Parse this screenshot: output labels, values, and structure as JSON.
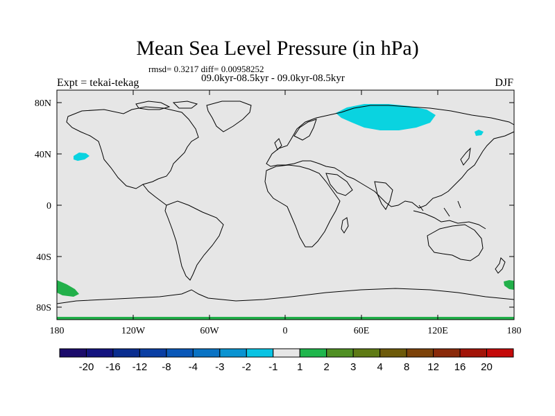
{
  "title": "Mean Sea Level Pressure (in hPa)",
  "stats_line": "rmsd= 0.3217 diff= 0.00958252",
  "period_line": "09.0kyr-08.5kyr - 09.0kyr-08.5kyr",
  "experiment_label": "Expt = tekai-tekag",
  "season_label": "DJF",
  "lat_ticks": [
    "80N",
    "40N",
    "0",
    "40S",
    "80S"
  ],
  "lon_ticks": [
    "180",
    "120W",
    "60W",
    "0",
    "60E",
    "120E",
    "180"
  ],
  "colorbar": {
    "colors": [
      "#1b0b6b",
      "#13137f",
      "#0a2d8f",
      "#0a3ea3",
      "#0a58b8",
      "#0a73c4",
      "#0a93d1",
      "#0ac3e3",
      "#e6e6e6",
      "#1fb64c",
      "#4f8f23",
      "#5e7a14",
      "#6d5a0a",
      "#7c420a",
      "#8a2a0a",
      "#a21408",
      "#c40a0a"
    ],
    "labels": [
      "-20",
      "-16",
      "-12",
      "-8",
      "-4",
      "-3",
      "-2",
      "-1",
      "1",
      "2",
      "3",
      "4",
      "8",
      "12",
      "16",
      "20"
    ]
  },
  "anomaly_colors": {
    "background": "#e6e6e6",
    "negative_minus2_to_minus1": "#0ad3e0",
    "positive_1_to_2": "#22b04a"
  }
}
